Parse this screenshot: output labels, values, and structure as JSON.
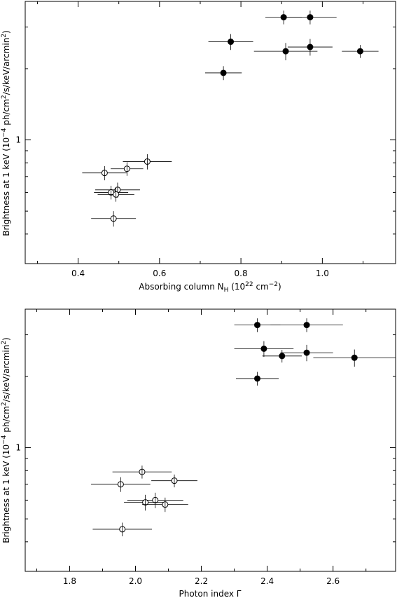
{
  "chart_data": [
    {
      "type": "scatter",
      "xlabel": {
        "main": "Absorbing column N",
        "sub": "H",
        "units": "(10",
        "exp": "22",
        "unit_tail": " cm",
        "exp2": "−2",
        "close": ")"
      },
      "ylabel": {
        "main": "Brightness at 1 keV (10",
        "exp": "−4",
        "middle": " ph/cm",
        "exp2": "2",
        "tail": "/s/keV/arcmin",
        "exp3": "2",
        "close": ")"
      },
      "xlim": [
        0.27,
        1.18
      ],
      "ylim": [
        0.3,
        3.85
      ],
      "y_scale": "log",
      "x_ticks": [
        "0.4",
        "0.6",
        "0.8",
        "1.0"
      ],
      "x_tick_values": [
        0.4,
        0.6,
        0.8,
        1.0
      ],
      "y_ticks": [
        "1"
      ],
      "y_tick_values": [
        1
      ],
      "points": [
        {
          "x": 0.905,
          "y": 3.3,
          "xerr": 0.045,
          "yerr": 0.22,
          "filled": true
        },
        {
          "x": 0.97,
          "y": 3.3,
          "xerr": 0.065,
          "yerr": 0.22,
          "filled": true
        },
        {
          "x": 0.775,
          "y": 2.6,
          "xerr": 0.055,
          "yerr": 0.2,
          "filled": true
        },
        {
          "x": 0.97,
          "y": 2.47,
          "xerr": 0.055,
          "yerr": 0.2,
          "filled": true
        },
        {
          "x": 0.91,
          "y": 2.37,
          "xerr": 0.078,
          "yerr": 0.2,
          "filled": true
        },
        {
          "x": 1.093,
          "y": 2.37,
          "xerr": 0.045,
          "yerr": 0.15,
          "filled": true
        },
        {
          "x": 0.757,
          "y": 1.92,
          "xerr": 0.045,
          "yerr": 0.13,
          "filled": true
        },
        {
          "x": 0.57,
          "y": 0.81,
          "xerr": 0.06,
          "yerr": 0.06,
          "filled": false
        },
        {
          "x": 0.52,
          "y": 0.755,
          "xerr": 0.04,
          "yerr": 0.05,
          "filled": false
        },
        {
          "x": 0.465,
          "y": 0.725,
          "xerr": 0.055,
          "yerr": 0.05,
          "filled": false
        },
        {
          "x": 0.497,
          "y": 0.615,
          "xerr": 0.055,
          "yerr": 0.045,
          "filled": false
        },
        {
          "x": 0.481,
          "y": 0.6,
          "xerr": 0.042,
          "yerr": 0.04,
          "filled": false
        },
        {
          "x": 0.493,
          "y": 0.588,
          "xerr": 0.045,
          "yerr": 0.04,
          "filled": false
        },
        {
          "x": 0.487,
          "y": 0.465,
          "xerr": 0.055,
          "yerr": 0.035,
          "filled": false
        }
      ]
    },
    {
      "type": "scatter",
      "xlabel": {
        "main": "Photon index Γ"
      },
      "ylabel": {
        "main": "Brightness at 1 keV (10",
        "exp": "−4",
        "middle": " ph/cm",
        "exp2": "2",
        "tail": "/s/keV/arcmin",
        "exp3": "2",
        "close": ")"
      },
      "xlim": [
        1.665,
        2.79
      ],
      "ylim": [
        0.3,
        3.85
      ],
      "y_scale": "log",
      "x_ticks": [
        "1.8",
        "2.0",
        "2.2",
        "2.4",
        "2.6"
      ],
      "x_tick_values": [
        1.8,
        2.0,
        2.2,
        2.4,
        2.6
      ],
      "y_ticks": [
        "1"
      ],
      "y_tick_values": [
        1
      ],
      "points": [
        {
          "x": 2.37,
          "y": 3.3,
          "xerr": 0.07,
          "yerr": 0.22,
          "filled": true
        },
        {
          "x": 2.52,
          "y": 3.3,
          "xerr": 0.11,
          "yerr": 0.22,
          "filled": true
        },
        {
          "x": 2.39,
          "y": 2.62,
          "xerr": 0.09,
          "yerr": 0.2,
          "filled": true
        },
        {
          "x": 2.52,
          "y": 2.52,
          "xerr": 0.08,
          "yerr": 0.2,
          "filled": true
        },
        {
          "x": 2.445,
          "y": 2.44,
          "xerr": 0.06,
          "yerr": 0.15,
          "filled": true
        },
        {
          "x": 2.665,
          "y": 2.4,
          "xerr": 0.125,
          "yerr": 0.2,
          "filled": true
        },
        {
          "x": 2.37,
          "y": 1.96,
          "xerr": 0.065,
          "yerr": 0.13,
          "filled": true
        },
        {
          "x": 2.02,
          "y": 0.79,
          "xerr": 0.09,
          "yerr": 0.05,
          "filled": false
        },
        {
          "x": 2.118,
          "y": 0.725,
          "xerr": 0.07,
          "yerr": 0.045,
          "filled": false
        },
        {
          "x": 1.955,
          "y": 0.7,
          "xerr": 0.09,
          "yerr": 0.05,
          "filled": false
        },
        {
          "x": 2.06,
          "y": 0.6,
          "xerr": 0.085,
          "yerr": 0.045,
          "filled": false
        },
        {
          "x": 2.03,
          "y": 0.587,
          "xerr": 0.065,
          "yerr": 0.045,
          "filled": false
        },
        {
          "x": 2.09,
          "y": 0.575,
          "xerr": 0.07,
          "yerr": 0.04,
          "filled": false
        },
        {
          "x": 1.96,
          "y": 0.452,
          "xerr": 0.09,
          "yerr": 0.03,
          "filled": false
        }
      ]
    }
  ]
}
